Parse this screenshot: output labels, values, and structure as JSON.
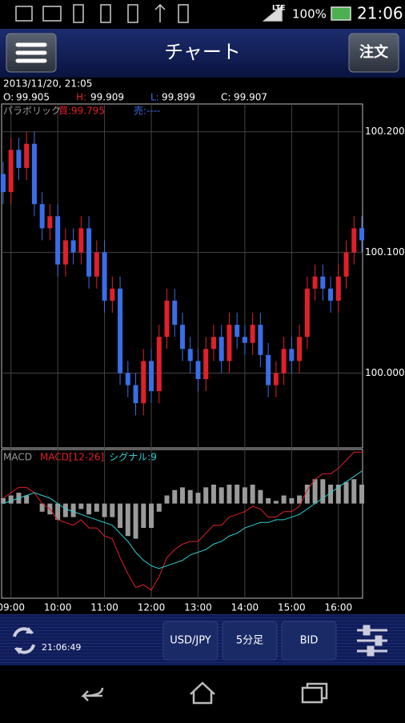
{
  "status_bar": {
    "network": "LTE",
    "battery": "100%",
    "time": "21:06"
  },
  "header": {
    "title": "チャート",
    "order_button": "注文"
  },
  "info": {
    "datetime": "2013/11/20,  21:05",
    "open_label": "O:",
    "open": "99.905",
    "high_label": "H:",
    "high": "99.909",
    "low_label": "L:",
    "low": "99.899",
    "close_label": "C:",
    "close": "99.907"
  },
  "chart_data": [
    {
      "type": "candlestick",
      "indicator": "パラボリック",
      "buy_label": "買:99.795",
      "sell_label": "売:----",
      "up_color": "#e0202a",
      "down_color": "#3a6ee8",
      "grid": true,
      "x": [
        530,
        540,
        550,
        560,
        570,
        580,
        590,
        600,
        610,
        620,
        630,
        640,
        650,
        660,
        670,
        680,
        690,
        700,
        710,
        720,
        730,
        740,
        750,
        760,
        770,
        780,
        790,
        800,
        810,
        820,
        830,
        840,
        850,
        860,
        870,
        880,
        890,
        900,
        910,
        920,
        930,
        940,
        950,
        960,
        970,
        980,
        990
      ],
      "open": [
        100.165,
        100.15,
        100.185,
        100.17,
        100.19,
        100.14,
        100.12,
        100.13,
        100.09,
        100.11,
        100.1,
        100.12,
        100.08,
        100.1,
        100.06,
        100.07,
        100.0,
        99.99,
        99.975,
        100.01,
        99.985,
        100.03,
        100.06,
        100.04,
        100.02,
        100.01,
        99.995,
        100.02,
        100.03,
        100.01,
        100.04,
        100.03,
        100.025,
        100.04,
        100.015,
        99.99,
        100.0,
        100.02,
        100.01,
        100.03,
        100.07,
        100.08,
        100.07,
        100.06,
        100.08,
        100.1,
        100.12
      ],
      "high": [
        100.175,
        100.195,
        100.195,
        100.2,
        100.2,
        100.15,
        100.14,
        100.14,
        100.12,
        100.12,
        100.13,
        100.13,
        100.11,
        100.11,
        100.08,
        100.08,
        100.01,
        100.0,
        100.02,
        100.02,
        100.04,
        100.07,
        100.07,
        100.05,
        100.03,
        100.02,
        100.03,
        100.04,
        100.04,
        100.05,
        100.05,
        100.04,
        100.05,
        100.05,
        100.025,
        100.01,
        100.03,
        100.03,
        100.04,
        100.08,
        100.09,
        100.09,
        100.08,
        100.09,
        100.11,
        100.13,
        100.13
      ],
      "low": [
        100.14,
        100.14,
        100.16,
        100.16,
        100.13,
        100.11,
        100.11,
        100.08,
        100.08,
        100.09,
        100.09,
        100.07,
        100.07,
        100.05,
        100.05,
        99.99,
        99.98,
        99.965,
        99.965,
        99.975,
        99.975,
        100.02,
        100.03,
        100.01,
        100.0,
        99.985,
        99.985,
        100.01,
        100.0,
        100.0,
        100.02,
        100.015,
        100.015,
        100.005,
        99.98,
        99.98,
        99.99,
        100.0,
        100.0,
        100.02,
        100.06,
        100.06,
        100.05,
        100.05,
        100.07,
        100.09,
        100.1
      ],
      "close": [
        100.15,
        100.185,
        100.17,
        100.19,
        100.14,
        100.12,
        100.13,
        100.09,
        100.11,
        100.1,
        100.12,
        100.08,
        100.1,
        100.06,
        100.07,
        100.0,
        99.99,
        99.975,
        100.01,
        99.985,
        100.03,
        100.06,
        100.04,
        100.02,
        100.01,
        99.995,
        100.02,
        100.03,
        100.01,
        100.04,
        100.03,
        100.025,
        100.04,
        100.015,
        99.99,
        100.0,
        100.02,
        100.01,
        100.03,
        100.07,
        100.08,
        100.07,
        100.06,
        100.08,
        100.1,
        100.12,
        100.11
      ],
      "xlim": [
        528,
        991
      ],
      "ylim": [
        99.938,
        100.223
      ],
      "xticks": [
        {
          "value": 540,
          "label": "09:00"
        },
        {
          "value": 600,
          "label": "10:00"
        },
        {
          "value": 660,
          "label": "11:00"
        },
        {
          "value": 720,
          "label": "12:00"
        },
        {
          "value": 780,
          "label": "13:00"
        },
        {
          "value": 840,
          "label": "14:00"
        },
        {
          "value": 900,
          "label": "15:00"
        },
        {
          "value": 960,
          "label": "16:00"
        }
      ],
      "yticks": [
        {
          "value": 100.2,
          "label": "100.200"
        },
        {
          "value": 100.1,
          "label": "100.100"
        },
        {
          "value": 100.0,
          "label": "100.000"
        }
      ]
    },
    {
      "type": "macd",
      "title": "MACD",
      "ylim": [
        -0.035,
        0.02
      ],
      "series": [
        {
          "name": "MACD[12-26]",
          "color": "#e0202a",
          "values": [
            0.002,
            0.004,
            0.006,
            0.006,
            0.004,
            0.0,
            -0.002,
            -0.006,
            -0.007,
            -0.008,
            -0.006,
            -0.009,
            -0.009,
            -0.012,
            -0.013,
            -0.02,
            -0.026,
            -0.031,
            -0.03,
            -0.032,
            -0.027,
            -0.02,
            -0.017,
            -0.015,
            -0.014,
            -0.014,
            -0.011,
            -0.008,
            -0.008,
            -0.005,
            -0.004,
            -0.003,
            -0.001,
            -0.002,
            -0.005,
            -0.005,
            -0.003,
            -0.003,
            -0.001,
            0.005,
            0.009,
            0.011,
            0.011,
            0.013,
            0.016,
            0.019,
            0.019
          ]
        },
        {
          "name": "シグナル:9",
          "color": "#30d0d0",
          "values": [
            0.0,
            0.001,
            0.002,
            0.003,
            0.004,
            0.003,
            0.002,
            0.0,
            -0.002,
            -0.003,
            -0.004,
            -0.005,
            -0.006,
            -0.007,
            -0.008,
            -0.011,
            -0.014,
            -0.018,
            -0.021,
            -0.023,
            -0.024,
            -0.023,
            -0.022,
            -0.021,
            -0.019,
            -0.018,
            -0.017,
            -0.015,
            -0.014,
            -0.012,
            -0.011,
            -0.009,
            -0.008,
            -0.007,
            -0.007,
            -0.006,
            -0.006,
            -0.005,
            -0.004,
            -0.002,
            0.0,
            0.002,
            0.004,
            0.006,
            0.008,
            0.01,
            0.012
          ]
        }
      ],
      "histogram": {
        "color": "#9a9a9a",
        "values": [
          0.002,
          0.003,
          0.004,
          0.003,
          0.0,
          -0.003,
          -0.004,
          -0.006,
          -0.005,
          -0.005,
          -0.002,
          -0.004,
          -0.003,
          -0.005,
          -0.005,
          -0.009,
          -0.012,
          -0.013,
          -0.009,
          -0.009,
          -0.003,
          0.003,
          0.005,
          0.006,
          0.005,
          0.004,
          0.006,
          0.007,
          0.006,
          0.007,
          0.007,
          0.006,
          0.007,
          0.005,
          0.002,
          0.001,
          0.003,
          0.002,
          0.003,
          0.007,
          0.009,
          0.009,
          0.007,
          0.007,
          0.008,
          0.009,
          0.007
        ]
      }
    }
  ],
  "footer": {
    "update_time": "21:06:49",
    "pair_button": "USD/JPY",
    "interval_button": "5分足",
    "price_button": "BID"
  }
}
